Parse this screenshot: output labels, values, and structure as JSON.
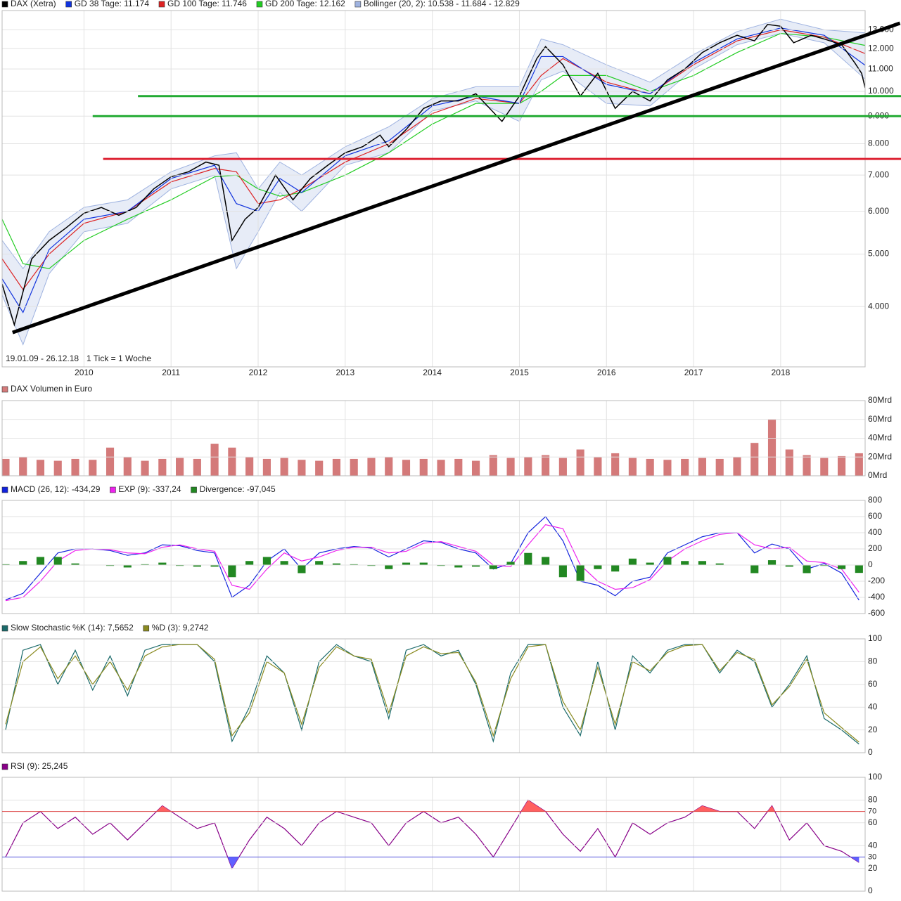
{
  "chart_data": [
    {
      "type": "line",
      "log_scale": true,
      "grid": true,
      "range_text": "19.01.09 - 26.12.18",
      "tick_text": "1 Tick = 1 Woche",
      "xlim": [
        2009.06,
        2018.97
      ],
      "xticks": [
        2010,
        2011,
        2012,
        2013,
        2014,
        2015,
        2016,
        2017,
        2018
      ],
      "ylim": [
        3093,
        14110
      ],
      "yticks": [
        {
          "value": 4000,
          "label": "4.000"
        },
        {
          "value": 5000,
          "label": "5.000"
        },
        {
          "value": 6000,
          "label": "6.000"
        },
        {
          "value": 7000,
          "label": "7.000"
        },
        {
          "value": 8000,
          "label": "8.000"
        },
        {
          "value": 9000,
          "label": "9.000"
        },
        {
          "value": 10000,
          "label": "10.000"
        },
        {
          "value": 11000,
          "label": "11.000"
        },
        {
          "value": 12000,
          "label": "12.000"
        },
        {
          "value": 13000,
          "label": "13.000"
        }
      ],
      "x": [
        2009.06,
        2009.3,
        2009.6,
        2010.0,
        2010.5,
        2011.0,
        2011.5,
        2011.75,
        2012.0,
        2012.25,
        2012.5,
        2013.0,
        2013.5,
        2014.0,
        2014.5,
        2015.0,
        2015.25,
        2015.5,
        2016.0,
        2016.5,
        2017.0,
        2017.5,
        2018.0,
        2018.5,
        2018.97
      ],
      "series": [
        {
          "name": "Bollinger (20, 2): 10.538 - 11.684 - 12.829",
          "type": "band",
          "color": "#9fb3e0",
          "upper": [
            5300,
            4700,
            5500,
            6100,
            6300,
            7100,
            7600,
            7700,
            6600,
            7400,
            7000,
            7900,
            8600,
            9700,
            10200,
            10200,
            12500,
            12200,
            11200,
            10400,
            11700,
            12900,
            13600,
            13000,
            12829
          ],
          "lower": [
            4200,
            3400,
            4600,
            5500,
            5700,
            6600,
            7000,
            4700,
            5500,
            6500,
            6000,
            7300,
            7700,
            9200,
            9600,
            8800,
            10500,
            10900,
            9500,
            9400,
            11000,
            12200,
            12800,
            12300,
            10538
          ]
        },
        {
          "name": "GD 200 Tage: 12.162",
          "type": "line",
          "color": "#22cc22",
          "values": [
            5800,
            4800,
            4700,
            5300,
            5800,
            6300,
            6950,
            7000,
            6600,
            6400,
            6500,
            7000,
            7700,
            8700,
            9500,
            9500,
            10000,
            10700,
            10700,
            10000,
            10700,
            11800,
            12800,
            12600,
            12162
          ]
        },
        {
          "name": "GD 100 Tage: 11.746",
          "type": "line",
          "color": "#dd2222",
          "values": [
            4900,
            4300,
            5000,
            5700,
            6000,
            6800,
            7200,
            7100,
            6200,
            6300,
            6600,
            7400,
            8000,
            9100,
            9700,
            9500,
            10700,
            11500,
            10400,
            9900,
            11200,
            12400,
            13000,
            12600,
            11746
          ]
        },
        {
          "name": "GD 38 Tage: 11.174",
          "type": "line",
          "color": "#1133dd",
          "values": [
            4500,
            3900,
            5100,
            5800,
            6000,
            6900,
            7300,
            6200,
            6000,
            6900,
            6500,
            7600,
            8100,
            9400,
            9800,
            9500,
            11600,
            11600,
            10300,
            9900,
            11300,
            12500,
            13100,
            12700,
            11174
          ]
        },
        {
          "name": "DAX (Xetra)",
          "type": "line",
          "color": "#000000",
          "x": [
            2009.06,
            2009.2,
            2009.4,
            2009.6,
            2009.8,
            2010.0,
            2010.2,
            2010.4,
            2010.6,
            2010.8,
            2011.0,
            2011.2,
            2011.4,
            2011.55,
            2011.7,
            2011.85,
            2012.0,
            2012.2,
            2012.4,
            2012.6,
            2012.8,
            2013.0,
            2013.2,
            2013.4,
            2013.5,
            2013.7,
            2013.9,
            2014.1,
            2014.3,
            2014.5,
            2014.8,
            2015.0,
            2015.2,
            2015.3,
            2015.5,
            2015.7,
            2015.9,
            2016.1,
            2016.3,
            2016.5,
            2016.7,
            2016.9,
            2017.1,
            2017.3,
            2017.5,
            2017.7,
            2017.85,
            2018.0,
            2018.15,
            2018.35,
            2018.5,
            2018.7,
            2018.85,
            2018.93,
            2018.97
          ],
          "values": [
            4400,
            3700,
            4900,
            5300,
            5600,
            5950,
            6100,
            5900,
            6100,
            6600,
            6950,
            7100,
            7400,
            7300,
            5300,
            5800,
            6100,
            7000,
            6300,
            6900,
            7300,
            7700,
            7900,
            8300,
            7900,
            8500,
            9300,
            9600,
            9600,
            9900,
            8800,
            9800,
            11500,
            12100,
            11200,
            9800,
            10800,
            9300,
            10000,
            9600,
            10500,
            11000,
            11800,
            12300,
            12700,
            12400,
            13300,
            13200,
            12300,
            12700,
            12500,
            12200,
            11300,
            10800,
            10150
          ]
        }
      ],
      "legend_order": [
        4,
        3,
        2,
        1,
        0
      ],
      "levels": [
        {
          "value": 9800,
          "color": "#22aa33",
          "from": 2010.62
        },
        {
          "value": 9000,
          "color": "#22aa33",
          "from": 2010.1
        },
        {
          "value": 7500,
          "color": "#dd2233",
          "from": 2010.22
        }
      ],
      "trendline": {
        "color": "#000000",
        "x": [
          2009.18,
          2019.37
        ],
        "values": [
          3580,
          13370
        ]
      }
    },
    {
      "type": "bar",
      "grid": true,
      "ylim": [
        0,
        80
      ],
      "yticks": [
        {
          "value": 0,
          "label": "0Mrd"
        },
        {
          "value": 20,
          "label": "20Mrd"
        },
        {
          "value": 40,
          "label": "40Mrd"
        },
        {
          "value": 60,
          "label": "60Mrd"
        },
        {
          "value": 80,
          "label": "80Mrd"
        }
      ],
      "x": [
        2009.1,
        2009.3,
        2009.5,
        2009.7,
        2009.9,
        2010.1,
        2010.3,
        2010.5,
        2010.7,
        2010.9,
        2011.1,
        2011.3,
        2011.5,
        2011.7,
        2011.9,
        2012.1,
        2012.3,
        2012.5,
        2012.7,
        2012.9,
        2013.1,
        2013.3,
        2013.5,
        2013.7,
        2013.9,
        2014.1,
        2014.3,
        2014.5,
        2014.7,
        2014.9,
        2015.1,
        2015.3,
        2015.5,
        2015.7,
        2015.9,
        2016.1,
        2016.3,
        2016.5,
        2016.7,
        2016.9,
        2017.1,
        2017.3,
        2017.5,
        2017.7,
        2017.9,
        2018.1,
        2018.3,
        2018.5,
        2018.7,
        2018.9
      ],
      "series": [
        {
          "name": "DAX Volumen in Euro",
          "type": "bar",
          "color": "#d47a7a",
          "values": [
            18,
            20,
            17,
            16,
            18,
            17,
            30,
            20,
            16,
            18,
            19,
            18,
            34,
            30,
            20,
            18,
            19,
            17,
            16,
            18,
            18,
            19,
            20,
            17,
            18,
            17,
            18,
            16,
            22,
            19,
            20,
            22,
            19,
            28,
            20,
            24,
            19,
            18,
            17,
            18,
            19,
            18,
            20,
            35,
            60,
            28,
            22,
            19,
            21,
            24
          ]
        }
      ]
    },
    {
      "type": "line",
      "grid": true,
      "ylim": [
        -600,
        800
      ],
      "yticks": [
        -600,
        -400,
        -200,
        0,
        200,
        400,
        600,
        800
      ],
      "x": [
        2009.1,
        2009.3,
        2009.5,
        2009.7,
        2009.9,
        2010.1,
        2010.3,
        2010.5,
        2010.7,
        2010.9,
        2011.1,
        2011.3,
        2011.5,
        2011.7,
        2011.9,
        2012.1,
        2012.3,
        2012.5,
        2012.7,
        2012.9,
        2013.1,
        2013.3,
        2013.5,
        2013.7,
        2013.9,
        2014.1,
        2014.3,
        2014.5,
        2014.7,
        2014.9,
        2015.1,
        2015.3,
        2015.5,
        2015.7,
        2015.9,
        2016.1,
        2016.3,
        2016.5,
        2016.7,
        2016.9,
        2017.1,
        2017.3,
        2017.5,
        2017.7,
        2017.9,
        2018.1,
        2018.3,
        2018.5,
        2018.7,
        2018.9
      ],
      "series": [
        {
          "name": "MACD (26, 12): -434,29",
          "type": "line",
          "color": "#1122dd",
          "values": [
            -430,
            -350,
            -100,
            150,
            200,
            200,
            180,
            120,
            150,
            250,
            240,
            180,
            150,
            -400,
            -250,
            50,
            200,
            -50,
            150,
            200,
            230,
            210,
            100,
            200,
            300,
            280,
            200,
            150,
            -50,
            20,
            400,
            600,
            300,
            -200,
            -250,
            -380,
            -200,
            -150,
            150,
            250,
            350,
            400,
            400,
            150,
            260,
            200,
            -50,
            20,
            -100,
            -434
          ]
        },
        {
          "name": "EXP (9): -337,24",
          "type": "line",
          "color": "#ee22ee",
          "values": [
            -440,
            -400,
            -200,
            50,
            180,
            200,
            190,
            150,
            140,
            220,
            250,
            200,
            170,
            -250,
            -300,
            -50,
            150,
            50,
            100,
            180,
            220,
            220,
            150,
            170,
            270,
            290,
            230,
            170,
            0,
            -20,
            250,
            500,
            450,
            0,
            -200,
            -300,
            -280,
            -180,
            50,
            200,
            300,
            380,
            400,
            250,
            200,
            220,
            50,
            30,
            -50,
            -337
          ]
        },
        {
          "name": "Divergence: -97,045",
          "type": "bar",
          "color": "#228822",
          "values": [
            10,
            50,
            100,
            100,
            20,
            0,
            -10,
            -30,
            10,
            30,
            -10,
            -20,
            -20,
            -150,
            50,
            100,
            50,
            -100,
            50,
            20,
            10,
            -10,
            -50,
            30,
            30,
            -10,
            -30,
            -20,
            -50,
            40,
            150,
            100,
            -150,
            -200,
            -50,
            -80,
            80,
            30,
            100,
            50,
            50,
            20,
            0,
            -100,
            60,
            -20,
            -100,
            -10,
            -50,
            -97
          ]
        }
      ],
      "legend_order": [
        0,
        1,
        2
      ]
    },
    {
      "type": "line",
      "grid": true,
      "ylim": [
        0,
        100
      ],
      "yticks": [
        0,
        20,
        40,
        60,
        80,
        100
      ],
      "x": [
        2009.1,
        2009.3,
        2009.5,
        2009.7,
        2009.9,
        2010.1,
        2010.3,
        2010.5,
        2010.7,
        2010.9,
        2011.1,
        2011.3,
        2011.5,
        2011.7,
        2011.9,
        2012.1,
        2012.3,
        2012.5,
        2012.7,
        2012.9,
        2013.1,
        2013.3,
        2013.5,
        2013.7,
        2013.9,
        2014.1,
        2014.3,
        2014.5,
        2014.7,
        2014.9,
        2015.1,
        2015.3,
        2015.5,
        2015.7,
        2015.9,
        2016.1,
        2016.3,
        2016.5,
        2016.7,
        2016.9,
        2017.1,
        2017.3,
        2017.5,
        2017.7,
        2017.9,
        2018.1,
        2018.3,
        2018.5,
        2018.7,
        2018.9
      ],
      "series": [
        {
          "name": "Slow Stochastic %K (14): 7,5652",
          "type": "line",
          "color": "#1a6a6a",
          "values": [
            20,
            90,
            95,
            60,
            90,
            55,
            85,
            50,
            90,
            95,
            95,
            95,
            80,
            10,
            40,
            85,
            70,
            20,
            80,
            95,
            85,
            80,
            30,
            90,
            95,
            85,
            90,
            60,
            10,
            70,
            95,
            95,
            40,
            15,
            80,
            20,
            85,
            70,
            90,
            95,
            95,
            70,
            90,
            80,
            40,
            60,
            85,
            30,
            20,
            7.57
          ]
        },
        {
          "name": "%D (3): 9,2742",
          "type": "line",
          "color": "#8a8a20",
          "values": [
            25,
            80,
            93,
            65,
            85,
            60,
            80,
            55,
            85,
            93,
            95,
            95,
            82,
            15,
            35,
            80,
            70,
            25,
            75,
            93,
            85,
            82,
            35,
            85,
            93,
            87,
            88,
            62,
            15,
            65,
            93,
            95,
            45,
            20,
            75,
            25,
            80,
            72,
            88,
            94,
            95,
            72,
            88,
            82,
            42,
            58,
            82,
            35,
            22,
            9.27
          ]
        }
      ],
      "legend_order": [
        0,
        1
      ]
    },
    {
      "type": "line",
      "grid": true,
      "ylim": [
        0,
        100
      ],
      "yticks": [
        0,
        20,
        40,
        60,
        80,
        100
      ],
      "x": [
        2009.1,
        2009.3,
        2009.5,
        2009.7,
        2009.9,
        2010.1,
        2010.3,
        2010.5,
        2010.7,
        2010.9,
        2011.1,
        2011.3,
        2011.5,
        2011.7,
        2011.9,
        2012.1,
        2012.3,
        2012.5,
        2012.7,
        2012.9,
        2013.1,
        2013.3,
        2013.5,
        2013.7,
        2013.9,
        2014.1,
        2014.3,
        2014.5,
        2014.7,
        2014.9,
        2015.1,
        2015.3,
        2015.5,
        2015.7,
        2015.9,
        2016.1,
        2016.3,
        2016.5,
        2016.7,
        2016.9,
        2017.1,
        2017.3,
        2017.5,
        2017.7,
        2017.9,
        2018.1,
        2018.3,
        2018.5,
        2018.7,
        2018.9
      ],
      "series": [
        {
          "name": "RSI (9): 25,245",
          "type": "line",
          "color": "#880088",
          "values": [
            30,
            60,
            70,
            55,
            65,
            50,
            60,
            45,
            60,
            75,
            65,
            55,
            60,
            20,
            45,
            65,
            55,
            40,
            60,
            70,
            65,
            60,
            40,
            60,
            70,
            60,
            65,
            50,
            30,
            55,
            80,
            70,
            50,
            35,
            55,
            30,
            60,
            50,
            60,
            65,
            75,
            70,
            70,
            55,
            75,
            45,
            60,
            40,
            35,
            25.25
          ]
        }
      ],
      "legend_order": [
        0
      ],
      "levels": [
        {
          "value": 70,
          "color": "#dd4444",
          "fill": "#ff6060",
          "side": "above"
        },
        {
          "value": 30,
          "color": "#5555dd",
          "fill": "#6060ff",
          "side": "below"
        }
      ]
    }
  ]
}
